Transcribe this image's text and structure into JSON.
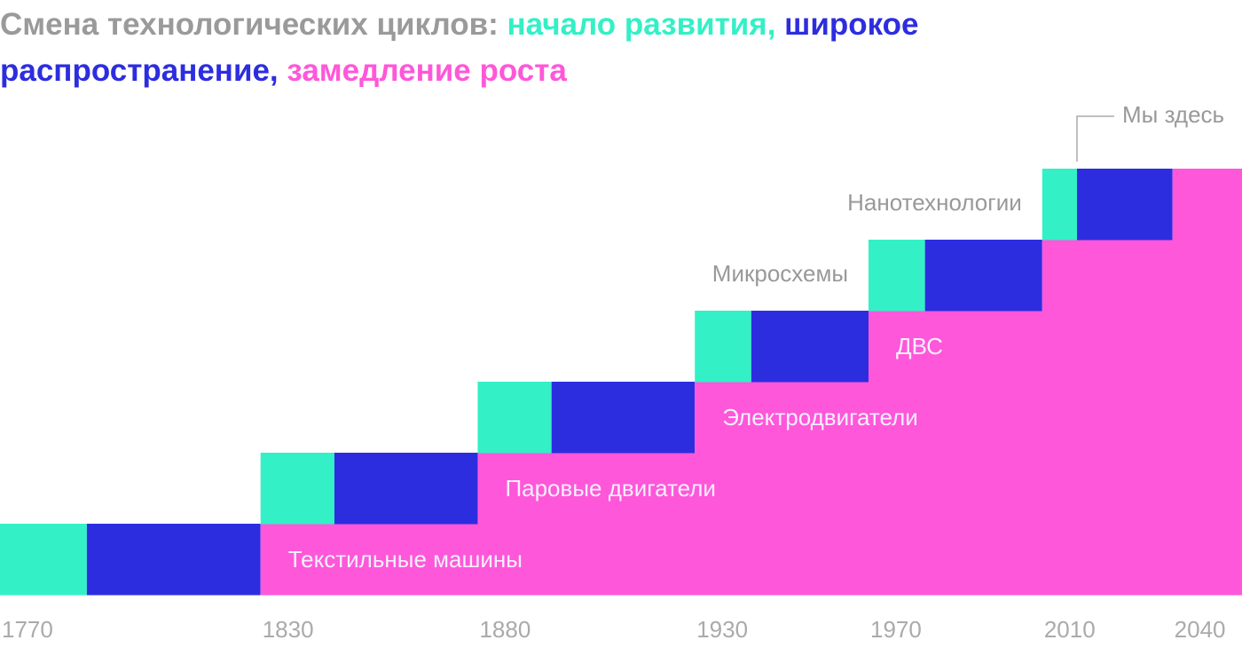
{
  "chart_data": {
    "type": "gantt",
    "title": "Смена технологических циклов:",
    "categories": [
      "Текстильные машины",
      "Паровые двигатели",
      "Электродвигатели",
      "ДВС",
      "Микросхемы",
      "Нанотехнологии"
    ],
    "series": [
      {
        "name": "начало развития,",
        "color": "#33f0c6",
        "values": [
          1770,
          1830,
          1880,
          1930,
          1970,
          2010
        ]
      },
      {
        "name": "широкое распространение,",
        "color": "#2d2de0",
        "values": [
          1790,
          1847,
          1897,
          1943,
          1983,
          2018
        ]
      },
      {
        "name": "замедление роста",
        "color": "#ff57d9",
        "values": [
          1830,
          1880,
          1930,
          1970,
          2010,
          2040
        ]
      }
    ],
    "xlim": [
      1770,
      2056
    ],
    "xticks": [
      1770,
      1830,
      1880,
      1930,
      1970,
      2010,
      2040
    ],
    "annotation": {
      "text": "Мы здесь",
      "x": 2018
    }
  }
}
